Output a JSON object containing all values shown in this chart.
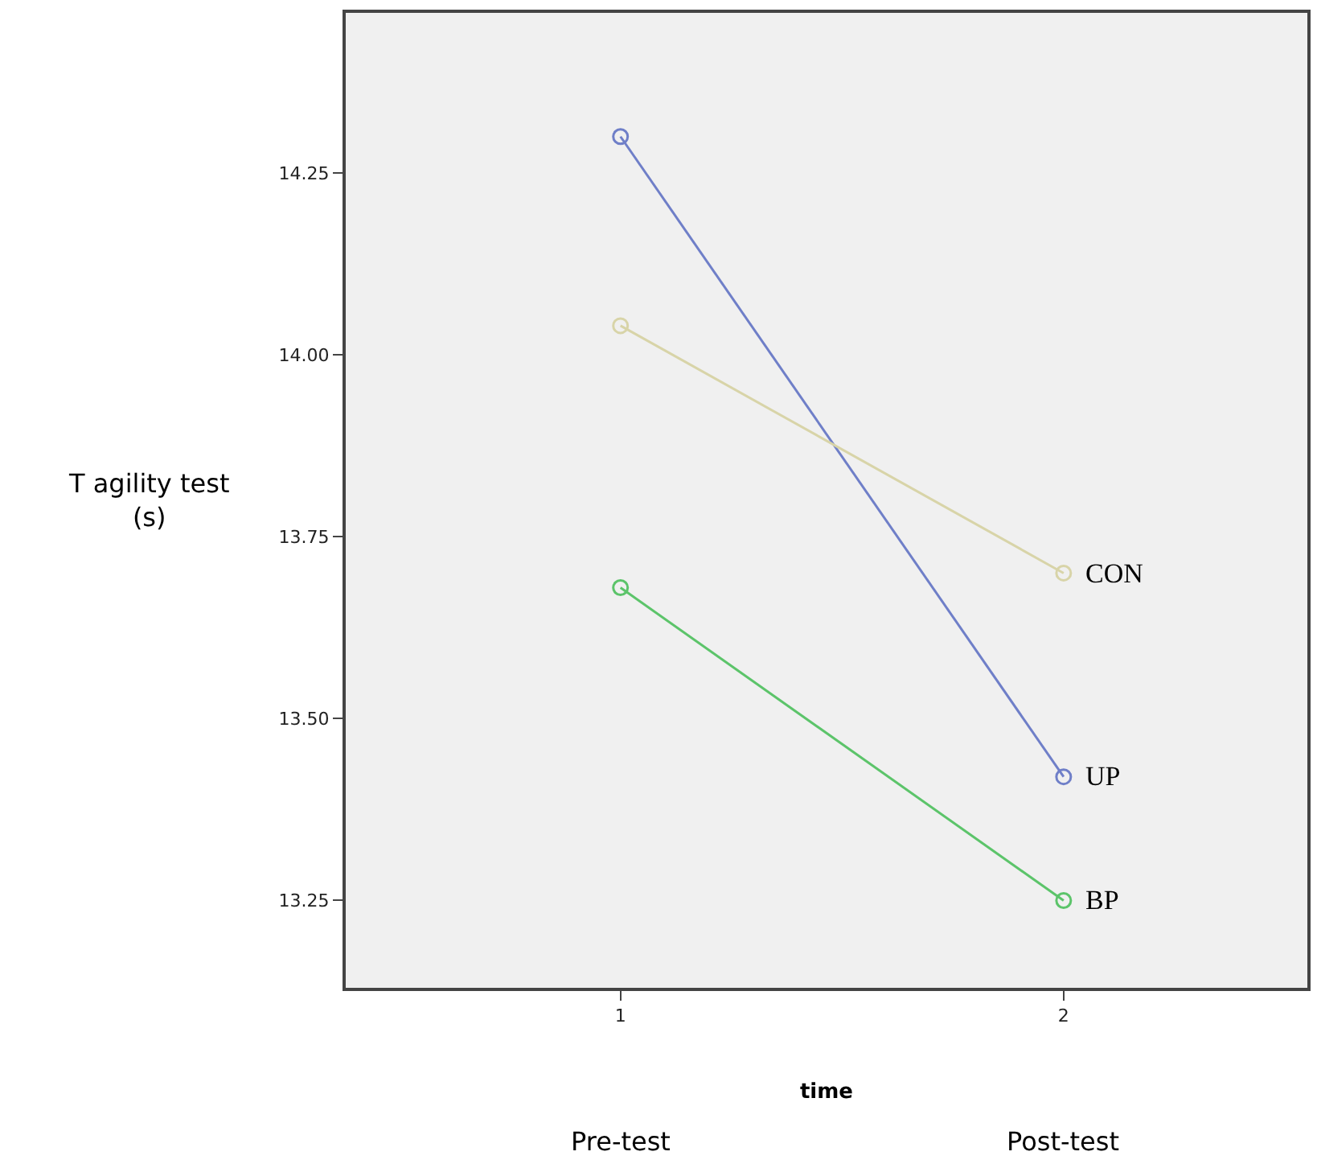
{
  "chart_data": {
    "type": "line",
    "xlabel": "time",
    "ylabel": "T agility test\n(s)",
    "x": [
      1,
      2
    ],
    "series": [
      {
        "name": "UP",
        "color": "#6f7fc8",
        "values": [
          14.3,
          13.42
        ]
      },
      {
        "name": "CON",
        "color": "#d8d4a8",
        "values": [
          14.04,
          13.7
        ]
      },
      {
        "name": "BP",
        "color": "#5cc46a",
        "values": [
          13.68,
          13.25
        ]
      }
    ],
    "xlim": [
      0.38,
      2.55
    ],
    "xticks": [
      1,
      2
    ],
    "ylim": [
      13.13,
      14.47
    ],
    "yticks": [
      {
        "value": 13.25,
        "label": "13.25"
      },
      {
        "value": 13.5,
        "label": "13.50"
      },
      {
        "value": 13.75,
        "label": "13.75"
      },
      {
        "value": 14.0,
        "label": "14.00"
      },
      {
        "value": 14.25,
        "label": "14.25"
      }
    ],
    "annotations": [
      "Pre-test",
      "Post-test"
    ],
    "marker": "circle",
    "line_style": "solid",
    "grid": false,
    "legend": false
  }
}
